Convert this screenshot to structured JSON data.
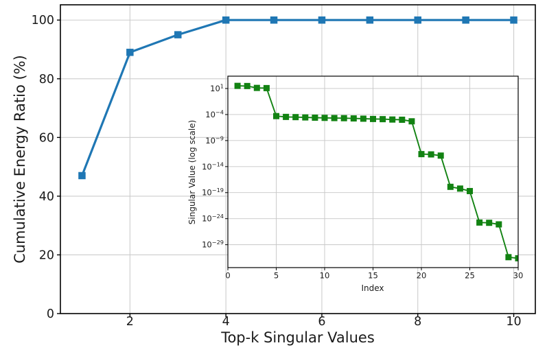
{
  "figure": {
    "kind": "matplotlib-style figure: cumulative energy line chart with log-scale singular value inset",
    "background": "#ffffff",
    "text_color": "#1a1a1a"
  },
  "chart_data": [
    {
      "id": "main",
      "type": "line",
      "title": "",
      "xlabel": "Top-k Singular Values",
      "ylabel": "Cumulative Energy Ratio (%)",
      "x": [
        1,
        2,
        3,
        4,
        5,
        6,
        7,
        8,
        9,
        10
      ],
      "y": [
        47,
        89,
        95,
        100,
        100,
        100,
        100,
        100,
        100,
        100
      ],
      "xticks": [
        2,
        4,
        6,
        8,
        10
      ],
      "yticks": [
        0,
        20,
        40,
        60,
        80,
        100
      ],
      "xlim": [
        0.55,
        10.45
      ],
      "ylim": [
        0,
        105.2
      ],
      "grid": true,
      "legend": "none",
      "marker": "square",
      "line_color": "#1f77b4",
      "grid_color": "#cccccc"
    },
    {
      "id": "inset",
      "type": "line",
      "title": "",
      "xlabel": "Index",
      "ylabel": "Singular Value (log scale)",
      "yscale": "log",
      "x": [
        1,
        2,
        3,
        4,
        5,
        6,
        7,
        8,
        9,
        10,
        11,
        12,
        13,
        14,
        15,
        16,
        17,
        18,
        19,
        20,
        21,
        22,
        23,
        24,
        25,
        26,
        27,
        28,
        29,
        30
      ],
      "y": [
        32,
        30,
        13,
        12,
        5e-05,
        3.5e-05,
        3.2e-05,
        2.8e-05,
        2.5e-05,
        2.3e-05,
        2.1e-05,
        2e-05,
        1.8e-05,
        1.6e-05,
        1.4e-05,
        1.3e-05,
        1.1e-05,
        1e-05,
        5e-06,
        2.5e-12,
        2.2e-12,
        1.3e-12,
        1.3e-18,
        6e-19,
        2e-19,
        1.8e-25,
        1.6e-25,
        8e-26,
        4e-32,
        2.5e-32
      ],
      "xticks": [
        0,
        5,
        10,
        15,
        20,
        25,
        30
      ],
      "ytick_exponents": [
        1,
        -4,
        -9,
        -14,
        -19,
        -24,
        -29
      ],
      "xlim": [
        0,
        30
      ],
      "ylim_exponents": [
        -33.4,
        3.37
      ],
      "grid": true,
      "legend": "none",
      "marker": "square",
      "line_color": "#128212",
      "grid_color": "#c6c6c6"
    }
  ]
}
